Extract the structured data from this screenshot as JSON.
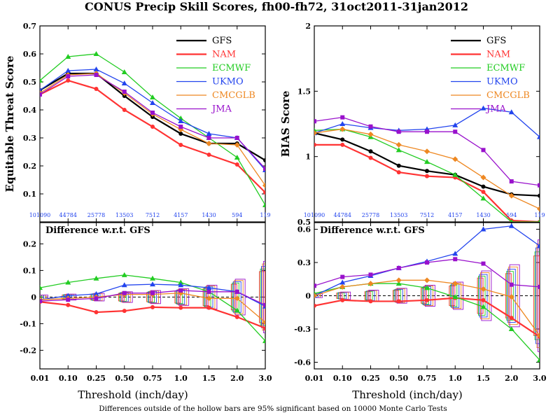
{
  "title": "CONUS Precip Skill Scores, fh00-fh72, 31oct2011-31jan2012",
  "footnote": "Differences outside of the hollow bars are 95% significant based on 10000 Monte Carlo Tests",
  "colors": {
    "GFS": "#000000",
    "NAM": "#ff3333",
    "ECMWF": "#22cc22",
    "UKMO": "#2244ee",
    "CMCGLB": "#ee8822",
    "JMA": "#9911cc",
    "count_text": "#2244ee"
  },
  "chart_data": [
    {
      "type": "line",
      "title": "",
      "xlabel": "",
      "ylabel": "Equitable Threat Score",
      "ylim": [
        0,
        0.7
      ],
      "yticks": [
        "0.1",
        "0.2",
        "0.3",
        "0.4",
        "0.5",
        "0.6",
        "0.7"
      ],
      "categories": [
        "0.01",
        "0.10",
        "0.25",
        "0.50",
        "0.75",
        "1.0",
        "1.5",
        "2.0",
        "3.0"
      ],
      "counts": [
        "101090",
        "44784",
        "25778",
        "13503",
        "7512",
        "4157",
        "1430",
        "594",
        "119"
      ],
      "legend_position": "top-right",
      "series": [
        {
          "name": "GFS",
          "values": [
            0.47,
            0.53,
            0.53,
            0.45,
            0.375,
            0.315,
            0.28,
            0.28,
            0.22
          ]
        },
        {
          "name": "NAM",
          "values": [
            0.455,
            0.505,
            0.475,
            0.4,
            0.34,
            0.275,
            0.24,
            0.205,
            0.105
          ]
        },
        {
          "name": "ECMWF",
          "values": [
            0.505,
            0.59,
            0.6,
            0.535,
            0.445,
            0.37,
            0.3,
            0.23,
            0.06
          ]
        },
        {
          "name": "UKMO",
          "values": [
            0.47,
            0.54,
            0.545,
            0.495,
            0.425,
            0.36,
            0.315,
            0.3,
            0.185
          ]
        },
        {
          "name": "CMCGLB",
          "values": [
            0.46,
            0.525,
            0.53,
            0.46,
            0.385,
            0.33,
            0.28,
            0.275,
            0.13
          ]
        },
        {
          "name": "JMA",
          "values": [
            0.455,
            0.52,
            0.525,
            0.465,
            0.39,
            0.34,
            0.3,
            0.3,
            0.19
          ]
        }
      ]
    },
    {
      "type": "line",
      "title": "",
      "xlabel": "",
      "ylabel": "BIAS Score",
      "ylim": [
        0.5,
        2
      ],
      "yticks": [
        "0.5",
        "1",
        "1.5",
        "2"
      ],
      "categories": [
        "0.01",
        "0.10",
        "0.25",
        "0.50",
        "0.75",
        "1.0",
        "1.5",
        "2.0",
        "3.0"
      ],
      "counts": [
        "101090",
        "44784",
        "25778",
        "13503",
        "7512",
        "4157",
        "1430",
        "594",
        "119"
      ],
      "legend_position": "top-right",
      "series": [
        {
          "name": "GFS",
          "values": [
            1.18,
            1.13,
            1.04,
            0.93,
            0.89,
            0.86,
            0.77,
            0.71,
            0.7
          ]
        },
        {
          "name": "NAM",
          "values": [
            1.09,
            1.09,
            0.99,
            0.88,
            0.85,
            0.84,
            0.73,
            0.51,
            0.5
          ]
        },
        {
          "name": "ECMWF",
          "values": [
            1.2,
            1.21,
            1.15,
            1.05,
            0.96,
            0.86,
            0.68,
            0.5,
            0.5
          ]
        },
        {
          "name": "UKMO",
          "values": [
            1.18,
            1.25,
            1.22,
            1.2,
            1.21,
            1.24,
            1.37,
            1.34,
            1.15
          ]
        },
        {
          "name": "CMCGLB",
          "values": [
            1.18,
            1.21,
            1.17,
            1.09,
            1.04,
            0.98,
            0.84,
            0.7,
            0.6
          ]
        },
        {
          "name": "JMA",
          "values": [
            1.27,
            1.3,
            1.23,
            1.19,
            1.19,
            1.19,
            1.05,
            0.81,
            0.78
          ]
        }
      ]
    },
    {
      "type": "line",
      "title": "Difference w.r.t. GFS",
      "xlabel": "Threshold (inch/day)",
      "ylabel": "",
      "ylim": [
        -0.27,
        0.28
      ],
      "yticks": [
        "-0.2",
        "-0.1",
        "0",
        "0.1",
        "0.2"
      ],
      "categories": [
        "0.01",
        "0.10",
        "0.25",
        "0.50",
        "0.75",
        "1.0",
        "1.5",
        "2.0",
        "3.0"
      ],
      "significance_half_width": [
        0.007,
        0.01,
        0.013,
        0.018,
        0.022,
        0.028,
        0.04,
        0.06,
        0.12
      ],
      "series": [
        {
          "name": "NAM",
          "values": [
            -0.018,
            -0.03,
            -0.057,
            -0.052,
            -0.038,
            -0.04,
            -0.04,
            -0.075,
            -0.117
          ]
        },
        {
          "name": "ECMWF",
          "values": [
            0.035,
            0.055,
            0.07,
            0.083,
            0.07,
            0.055,
            0.02,
            -0.05,
            -0.165
          ]
        },
        {
          "name": "UKMO",
          "values": [
            -0.01,
            0.005,
            0.012,
            0.045,
            0.048,
            0.045,
            0.035,
            0.02,
            -0.035
          ]
        },
        {
          "name": "CMCGLB",
          "values": [
            -0.01,
            -0.005,
            0.0,
            0.01,
            0.01,
            0.015,
            -0.005,
            -0.005,
            -0.095
          ]
        },
        {
          "name": "JMA",
          "values": [
            -0.015,
            -0.01,
            -0.005,
            0.015,
            0.015,
            0.025,
            0.02,
            0.02,
            -0.03
          ]
        }
      ]
    },
    {
      "type": "line",
      "title": "Difference w.r.t. GFS",
      "xlabel": "Threshold (inch/day)",
      "ylabel": "",
      "ylim": [
        -0.66,
        0.66
      ],
      "yticks": [
        "-0.6",
        "-0.3",
        "0",
        "0.3",
        "0.6"
      ],
      "categories": [
        "0.01",
        "0.10",
        "0.25",
        "0.50",
        "0.75",
        "1.0",
        "1.5",
        "2.0",
        "3.0"
      ],
      "significance_half_width": [
        0.015,
        0.03,
        0.045,
        0.06,
        0.085,
        0.11,
        0.2,
        0.25,
        0.45
      ],
      "series": [
        {
          "name": "NAM",
          "values": [
            -0.09,
            -0.04,
            -0.05,
            -0.05,
            -0.04,
            -0.02,
            -0.04,
            -0.2,
            -0.37
          ]
        },
        {
          "name": "ECMWF",
          "values": [
            0.02,
            0.08,
            0.11,
            0.11,
            0.07,
            -0.01,
            -0.1,
            -0.3,
            -0.58
          ]
        },
        {
          "name": "UKMO",
          "values": [
            0.0,
            0.12,
            0.18,
            0.25,
            0.31,
            0.38,
            0.6,
            0.63,
            0.45
          ]
        },
        {
          "name": "CMCGLB",
          "values": [
            0.0,
            0.08,
            0.11,
            0.14,
            0.14,
            0.11,
            0.06,
            -0.01,
            -0.36
          ]
        },
        {
          "name": "JMA",
          "values": [
            0.09,
            0.17,
            0.19,
            0.25,
            0.3,
            0.33,
            0.29,
            0.1,
            0.08
          ]
        }
      ]
    }
  ]
}
